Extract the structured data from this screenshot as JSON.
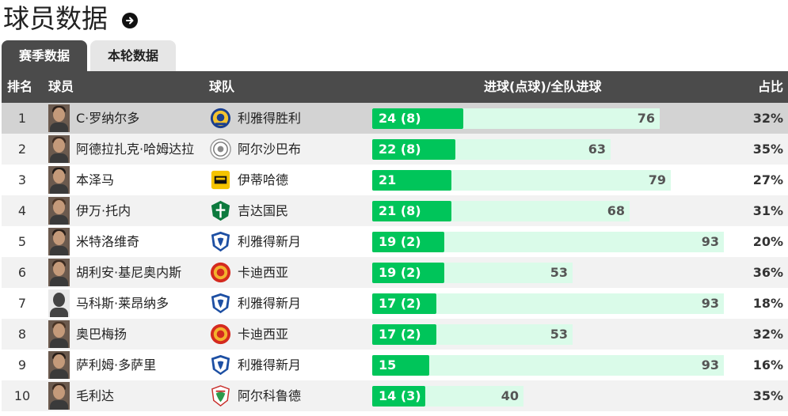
{
  "page_title": "球员数据",
  "tabs": [
    {
      "label": "赛季数据",
      "active": true
    },
    {
      "label": "本轮数据",
      "active": false
    }
  ],
  "columns": {
    "rank": "排名",
    "player": "球员",
    "team": "球队",
    "goals": "进球(点球)/全队进球",
    "ratio": "占比"
  },
  "colors": {
    "header_bg": "#4b4b4b",
    "bar_green": "#00c55a",
    "bar_track": "#dafbe9"
  },
  "max_team_goals": 93,
  "rows": [
    {
      "rank": "1",
      "player": "C·罗纳尔多",
      "team": "利雅得胜利",
      "team_logo": "al-nassr-logo",
      "goals": 24,
      "goals_label": "24 (8)",
      "team_goals": "76",
      "ratio": "32%"
    },
    {
      "rank": "2",
      "player": "阿德拉扎克·哈姆达拉",
      "team": "阿尔沙巴布",
      "team_logo": "al-shabab-logo",
      "goals": 22,
      "goals_label": "22 (8)",
      "team_goals": "63",
      "ratio": "35%"
    },
    {
      "rank": "3",
      "player": "本泽马",
      "team": "伊蒂哈德",
      "team_logo": "al-ittihad-logo",
      "goals": 21,
      "goals_label": "21",
      "team_goals": "79",
      "ratio": "27%"
    },
    {
      "rank": "4",
      "player": "伊万·托内",
      "team": "吉达国民",
      "team_logo": "al-ahli-logo",
      "goals": 21,
      "goals_label": "21 (8)",
      "team_goals": "68",
      "ratio": "31%"
    },
    {
      "rank": "5",
      "player": "米特洛维奇",
      "team": "利雅得新月",
      "team_logo": "al-hilal-logo",
      "goals": 19,
      "goals_label": "19 (2)",
      "team_goals": "93",
      "ratio": "20%"
    },
    {
      "rank": "6",
      "player": "胡利安·基尼奥内斯",
      "team": "卡迪西亚",
      "team_logo": "al-qadsiah-logo",
      "goals": 19,
      "goals_label": "19 (2)",
      "team_goals": "53",
      "ratio": "36%"
    },
    {
      "rank": "7",
      "player": "马科斯·莱昂纳多",
      "team": "利雅得新月",
      "team_logo": "al-hilal-logo",
      "goals": 17,
      "goals_label": "17 (2)",
      "team_goals": "93",
      "ratio": "18%"
    },
    {
      "rank": "8",
      "player": "奥巴梅扬",
      "team": "卡迪西亚",
      "team_logo": "al-qadsiah-logo",
      "goals": 17,
      "goals_label": "17 (2)",
      "team_goals": "53",
      "ratio": "32%"
    },
    {
      "rank": "9",
      "player": "萨利姆·多萨里",
      "team": "利雅得新月",
      "team_logo": "al-hilal-logo",
      "goals": 15,
      "goals_label": "15",
      "team_goals": "93",
      "ratio": "16%"
    },
    {
      "rank": "10",
      "player": "毛利达",
      "team": "阿尔科鲁德",
      "team_logo": "al-kholood-logo",
      "goals": 14,
      "goals_label": "14 (3)",
      "team_goals": "40",
      "ratio": "35%"
    }
  ]
}
